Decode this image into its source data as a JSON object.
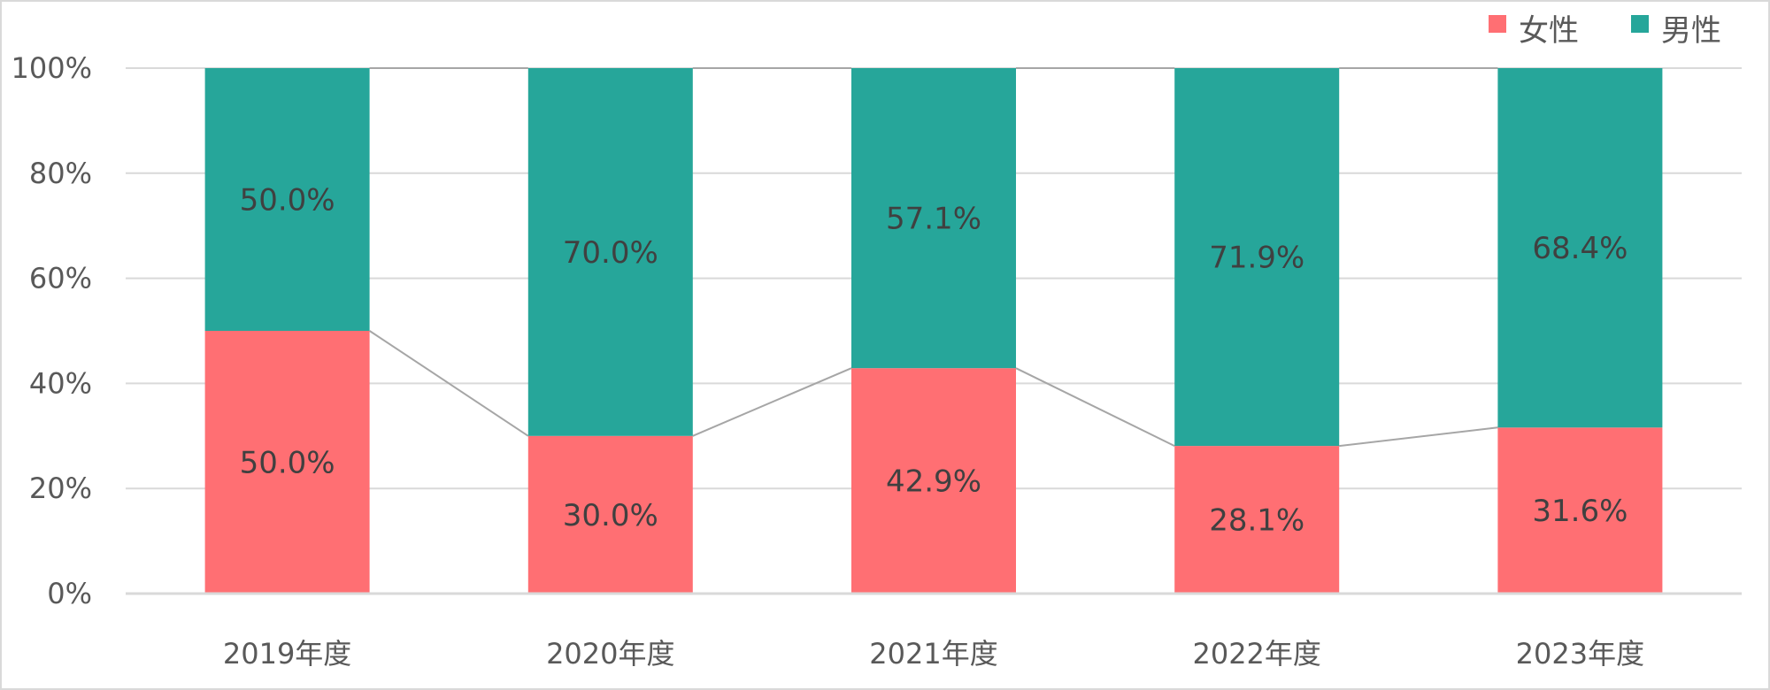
{
  "chart_data": {
    "type": "bar",
    "stacked": true,
    "categories": [
      "2019年度",
      "2020年度",
      "2021年度",
      "2022年度",
      "2023年度"
    ],
    "series": [
      {
        "name": "女性",
        "values": [
          50.0,
          30.0,
          42.9,
          28.1,
          31.6
        ],
        "color": "#ff6f73"
      },
      {
        "name": "男性",
        "values": [
          50.0,
          70.0,
          57.1,
          71.9,
          68.4
        ],
        "color": "#26a69a"
      }
    ],
    "value_labels": {
      "女性": [
        "50.0%",
        "30.0%",
        "42.9%",
        "28.1%",
        "31.6%"
      ],
      "男性": [
        "50.0%",
        "70.0%",
        "57.1%",
        "71.9%",
        "68.4%"
      ]
    },
    "y_ticks": [
      "0%",
      "20%",
      "40%",
      "60%",
      "80%",
      "100%"
    ],
    "ylim": [
      0,
      100
    ],
    "grid": true,
    "series_lines": true,
    "legend_position": "top-right",
    "title": "",
    "xlabel": "",
    "ylabel": ""
  }
}
